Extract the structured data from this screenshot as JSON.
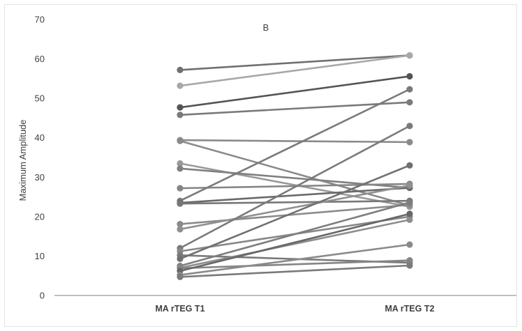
{
  "chart_data": {
    "type": "line",
    "title": "B",
    "xlabel": "",
    "ylabel": "Maximum Amplitude",
    "categories": [
      "MA rTEG T1",
      "MA rTEG T2"
    ],
    "ylim": [
      0,
      70
    ],
    "yticks": [
      "0",
      "10",
      "20",
      "30",
      "40",
      "50",
      "60",
      "70"
    ],
    "grid": false,
    "legend": "none",
    "series": [
      {
        "values": [
          57.2,
          60.9
        ],
        "color": "#707070"
      },
      {
        "values": [
          53.2,
          60.9
        ],
        "color": "#a8a8a8"
      },
      {
        "values": [
          47.7,
          55.6
        ],
        "color": "#555555"
      },
      {
        "values": [
          45.8,
          49.0
        ],
        "color": "#7a7a7a"
      },
      {
        "values": [
          39.4,
          38.9
        ],
        "color": "#8a8a8a"
      },
      {
        "values": [
          39.2,
          22.8
        ],
        "color": "#8a8a8a"
      },
      {
        "values": [
          33.5,
          22.5
        ],
        "color": "#9a9a9a"
      },
      {
        "values": [
          32.2,
          27.3
        ],
        "color": "#808080"
      },
      {
        "values": [
          27.2,
          28.3
        ],
        "color": "#858585"
      },
      {
        "values": [
          24.0,
          52.3
        ],
        "color": "#7a7a7a"
      },
      {
        "values": [
          23.5,
          27.3
        ],
        "color": "#6a6a6a"
      },
      {
        "values": [
          23.3,
          24.0
        ],
        "color": "#777777"
      },
      {
        "values": [
          18.1,
          23.0
        ],
        "color": "#8a8a8a"
      },
      {
        "values": [
          16.8,
          27.9
        ],
        "color": "#909090"
      },
      {
        "values": [
          12.0,
          43.0
        ],
        "color": "#7a7a7a"
      },
      {
        "values": [
          11.2,
          20.0
        ],
        "color": "#888888"
      },
      {
        "values": [
          10.2,
          8.3
        ],
        "color": "#7a7a7a"
      },
      {
        "values": [
          9.3,
          33.0
        ],
        "color": "#707070"
      },
      {
        "values": [
          7.5,
          23.6
        ],
        "color": "#7d7d7d"
      },
      {
        "values": [
          7.0,
          19.2
        ],
        "color": "#8d8d8d"
      },
      {
        "values": [
          6.9,
          8.9
        ],
        "color": "#858585"
      },
      {
        "values": [
          6.2,
          20.7
        ],
        "color": "#666666"
      },
      {
        "values": [
          5.2,
          12.9
        ],
        "color": "#8a8a8a"
      },
      {
        "values": [
          4.7,
          7.6
        ],
        "color": "#7a7a7a"
      }
    ]
  }
}
